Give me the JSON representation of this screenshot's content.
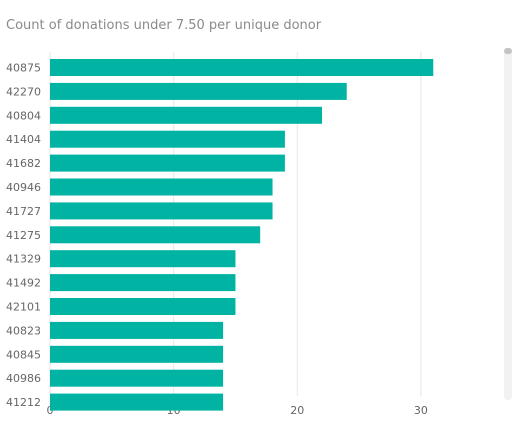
{
  "visual": {
    "title": "Count of donations under 7.50 per unique donor",
    "bar_color": "#00b3a3",
    "grid_color": "#e6e6e6",
    "text_color": "#666666"
  },
  "chart_data": {
    "type": "bar",
    "orientation": "horizontal",
    "title": "Count of donations under 7.50 per unique donor",
    "xlabel": "",
    "ylabel": "",
    "categories": [
      "40875",
      "42270",
      "40804",
      "41404",
      "41682",
      "40946",
      "41727",
      "41275",
      "41329",
      "41492",
      "42101",
      "40823",
      "40845",
      "40986",
      "41212"
    ],
    "values": [
      31,
      24,
      22,
      19,
      19,
      18,
      18,
      17,
      15,
      15,
      15,
      14,
      14,
      14,
      14
    ],
    "xlim": [
      0,
      33
    ],
    "x_ticks": [
      0,
      10,
      20,
      30
    ],
    "grid": true,
    "legend": "none"
  }
}
